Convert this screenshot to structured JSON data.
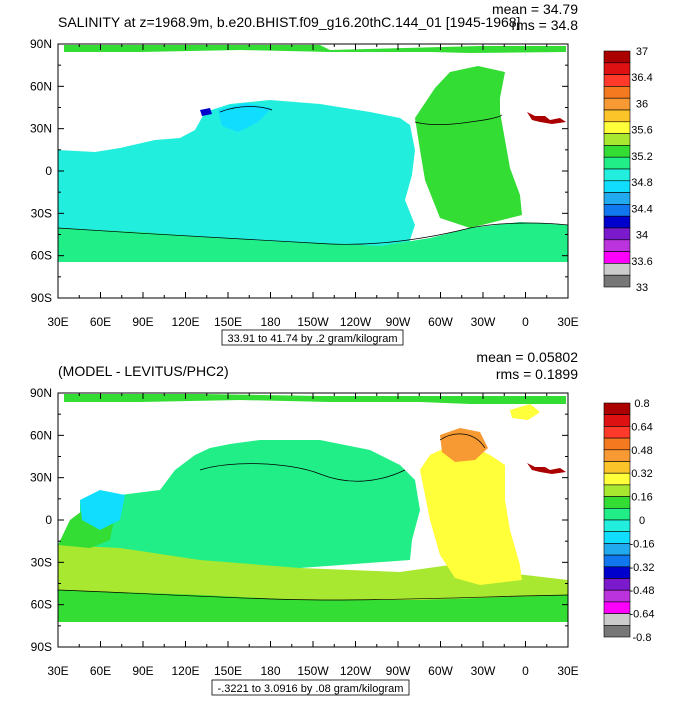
{
  "chart_data": [
    {
      "type": "heatmap",
      "title": "SALINITY at z=1968.9m, b.e20.BHIST.f09_g16.20thC.144_01 [1945-1968]",
      "stats": {
        "mean": "mean = 34.79",
        "rms": "rms = 34.8"
      },
      "contour_info": "33.91 to 41.74 by .2 gram/kilogram",
      "x_ticks": [
        "30E",
        "60E",
        "90E",
        "120E",
        "150E",
        "180",
        "150W",
        "120W",
        "90W",
        "60W",
        "30W",
        "0",
        "30E"
      ],
      "y_ticks": [
        "90N",
        "60N",
        "30N",
        "0",
        "30S",
        "60S",
        "90S"
      ],
      "colorbar": {
        "labels": [
          "37",
          "36.4",
          "36",
          "35.6",
          "35.2",
          "34.8",
          "34.4",
          "34",
          "33.6",
          "33"
        ],
        "colors": [
          "#aa0000",
          "#dd1111",
          "#ff3a2a",
          "#f57a1f",
          "#f79a33",
          "#fbc52a",
          "#ffff3a",
          "#a8e830",
          "#33dd33",
          "#22ee88",
          "#22eedd",
          "#11ddff",
          "#22aaee",
          "#1177ee",
          "#0000cc",
          "#7a1acc",
          "#bb33dd",
          "#ff00ff",
          "#cccccc",
          "#777777"
        ]
      }
    },
    {
      "type": "heatmap",
      "title": "(MODEL - LEVITUS/PHC2)",
      "stats": {
        "mean": "mean = 0.05802",
        "rms": "rms = 0.1899"
      },
      "contour_info": "-.3221 to 3.0916 by .08 gram/kilogram",
      "x_ticks": [
        "30E",
        "60E",
        "90E",
        "120E",
        "150E",
        "180",
        "150W",
        "120W",
        "90W",
        "60W",
        "30W",
        "0",
        "30E"
      ],
      "y_ticks": [
        "90N",
        "60N",
        "30N",
        "0",
        "30S",
        "60S",
        "90S"
      ],
      "colorbar": {
        "labels": [
          "0.8",
          "0.64",
          "0.48",
          "0.32",
          "0.16",
          "0",
          "-0.16",
          "-0.32",
          "-0.48",
          "-0.64",
          "-0.8"
        ],
        "colors": [
          "#aa0000",
          "#dd1111",
          "#ff3a2a",
          "#f57a1f",
          "#f79a33",
          "#fbc52a",
          "#ffff3a",
          "#a8e830",
          "#33dd33",
          "#22ee88",
          "#22eedd",
          "#11ddff",
          "#22aaee",
          "#1177ee",
          "#0000cc",
          "#7a1acc",
          "#bb33dd",
          "#ff00ff",
          "#cccccc",
          "#777777"
        ]
      }
    }
  ]
}
